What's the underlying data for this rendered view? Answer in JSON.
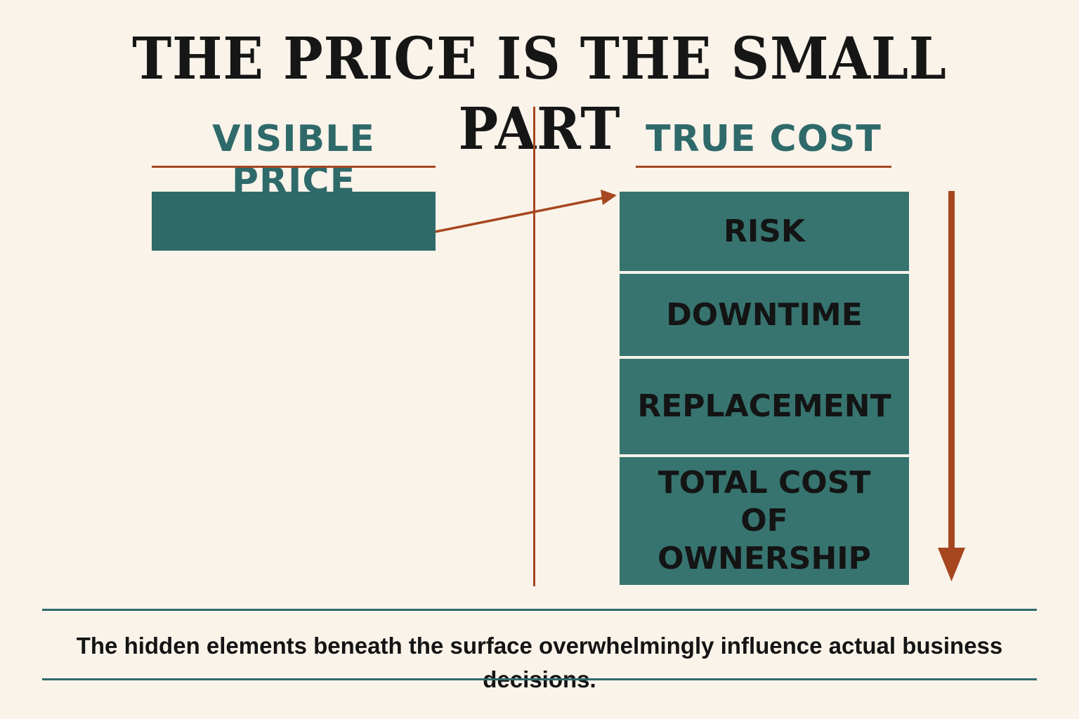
{
  "title": "THE PRICE IS THE SMALL PART",
  "left_column": {
    "heading": "VISIBLE PRICE"
  },
  "right_column": {
    "heading": "TRUE COST",
    "blocks": [
      {
        "label": "RISK"
      },
      {
        "label": "DOWNTIME"
      },
      {
        "label": "REPLACEMENT"
      },
      {
        "label": "TOTAL COST OF\nOWNERSHIP"
      }
    ]
  },
  "caption": "The hidden elements beneath the surface overwhelmingly influence actual business decisions.",
  "colors": {
    "background": "#faf3ea",
    "teal": "#2f6a6b",
    "teal_block": "#37746f",
    "rust": "#a6471f",
    "text": "#141414"
  }
}
